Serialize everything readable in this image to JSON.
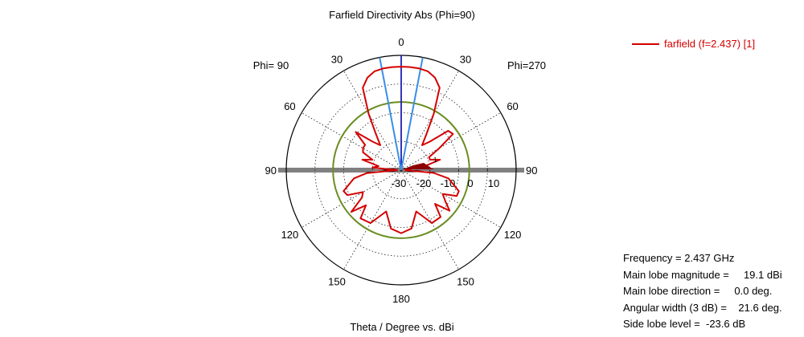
{
  "chart_data": {
    "type": "polar-line",
    "title": "Farfield Directivity Abs (Phi=90)",
    "xlabel": "Theta / Degree vs. dBi",
    "left_half_label": "Phi= 90",
    "right_half_label": "Phi=270",
    "angle_labels": {
      "top": "0",
      "upper_left": "30",
      "upper_right": "30",
      "mid_upper_left": "60",
      "mid_upper_right": "60",
      "left": "90",
      "right": "90",
      "mid_lower_left": "120",
      "mid_lower_right": "120",
      "lower_left": "150",
      "lower_right": "150",
      "bottom": "180"
    },
    "radial_ticks": [
      "-30",
      "-20",
      "-10",
      "0",
      "10"
    ],
    "radial_range_dBi": [
      -35,
      25
    ],
    "reference_circle_dBi": 0.6,
    "beam_width_lines_deg": [
      -10.8,
      10.8
    ],
    "main_lobe_direction_deg": 0,
    "series": [
      {
        "name": "farfield (f=2.437) [1]",
        "color": "#d40000",
        "theta_deg": [
          -180,
          -170,
          -160,
          -150,
          -140,
          -135,
          -130,
          -125,
          -120,
          -115,
          -110,
          -100,
          -95,
          -90,
          -85,
          -80,
          -75,
          -70,
          -65,
          -60,
          -55,
          -50,
          -45,
          -40,
          -35,
          -30,
          -25,
          -20,
          -15,
          -10,
          -5,
          0,
          5,
          10,
          15,
          20,
          25,
          30,
          35,
          40,
          45,
          50,
          55,
          60,
          65,
          70,
          75,
          80,
          85,
          90,
          95,
          100,
          110,
          115,
          120,
          125,
          130,
          135,
          140,
          150,
          160,
          170,
          180
        ],
        "gain_dBi": [
          -2,
          -4,
          -12,
          -3,
          -2,
          -9,
          -1,
          -10,
          -12,
          -4,
          -3,
          -10,
          -17,
          -33,
          -20,
          -23,
          -14,
          -19,
          -13,
          -12,
          -12,
          -4,
          -14,
          -18,
          -12,
          -1,
          12.5,
          16.5,
          18.5,
          19,
          19.1,
          19.1,
          19.1,
          19,
          18.5,
          16.5,
          12.5,
          -1,
          -12,
          -18,
          -14,
          -3,
          -2,
          -12,
          -19,
          -19,
          -14,
          -22,
          -32,
          -33,
          -18,
          -10,
          -3,
          -3,
          -10,
          -7,
          -2,
          -10,
          -3,
          -3,
          -12,
          -4,
          -2
        ]
      }
    ]
  },
  "legend": {
    "label": "farfield (f=2.437) [1]"
  },
  "info": {
    "frequency": "Frequency = 2.437 GHz",
    "main_lobe_magnitude": "Main lobe magnitude =     19.1 dBi",
    "main_lobe_direction": "Main lobe direction =     0.0 deg.",
    "angular_width": "Angular width (3 dB) =    21.6 deg.",
    "side_lobe_level": "Side lobe level =  -23.6 dB"
  },
  "marker_label": "1",
  "colors": {
    "trace": "#d40000",
    "reference_circle": "#6b8e23",
    "beam_lines": "#3a8ee6",
    "axis_line": "#1f1fb4",
    "grid": "#000000"
  }
}
